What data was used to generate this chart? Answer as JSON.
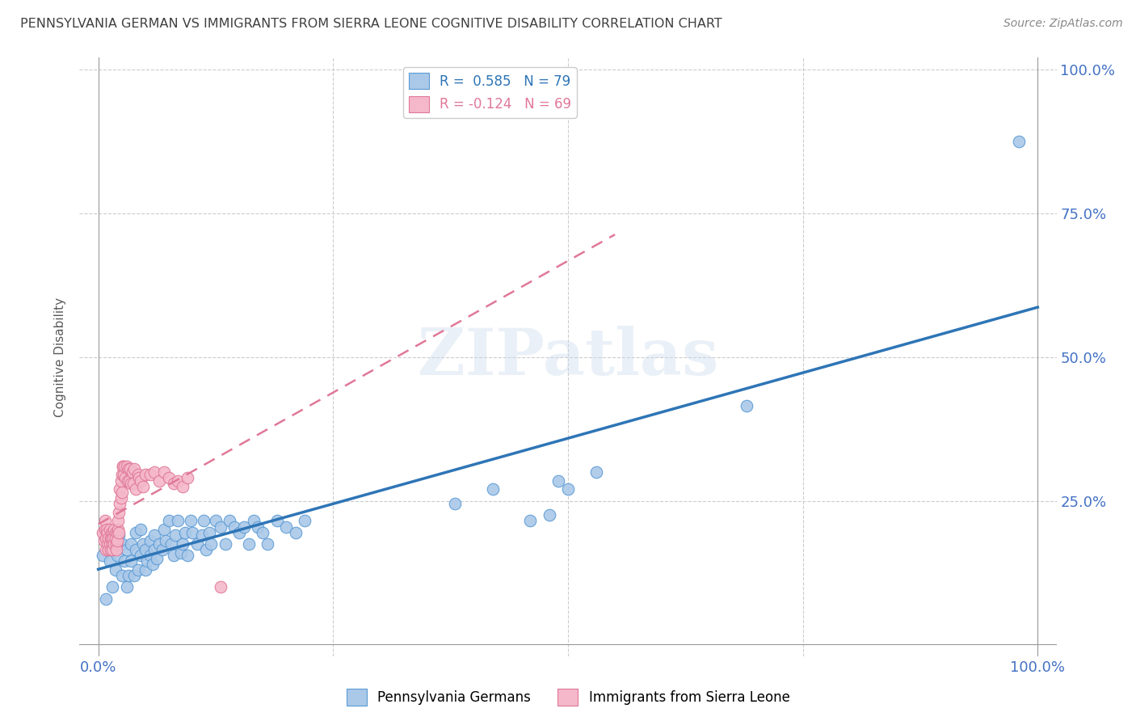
{
  "title": "PENNSYLVANIA GERMAN VS IMMIGRANTS FROM SIERRA LEONE COGNITIVE DISABILITY CORRELATION CHART",
  "source": "Source: ZipAtlas.com",
  "ylabel": "Cognitive Disability",
  "blue_R": 0.585,
  "blue_N": 79,
  "pink_R": -0.124,
  "pink_N": 69,
  "blue_color": "#aac8e8",
  "blue_edge_color": "#5b9bd5",
  "blue_line_color": "#2e75b6",
  "pink_color": "#f4b8ca",
  "pink_edge_color": "#e07898",
  "pink_line_color": "#e07898",
  "background_color": "#ffffff",
  "grid_color": "#cccccc",
  "title_color": "#404040",
  "axis_label_color": "#5a5a5a",
  "tick_color": "#4472c4",
  "watermark": "ZIPatlas",
  "blue_scatter_x": [
    0.005,
    0.008,
    0.01,
    0.012,
    0.015,
    0.015,
    0.018,
    0.02,
    0.022,
    0.025,
    0.025,
    0.028,
    0.03,
    0.03,
    0.032,
    0.035,
    0.035,
    0.038,
    0.04,
    0.04,
    0.042,
    0.045,
    0.045,
    0.048,
    0.05,
    0.05,
    0.052,
    0.055,
    0.055,
    0.058,
    0.06,
    0.06,
    0.062,
    0.065,
    0.068,
    0.07,
    0.072,
    0.075,
    0.078,
    0.08,
    0.082,
    0.085,
    0.088,
    0.09,
    0.092,
    0.095,
    0.098,
    0.1,
    0.105,
    0.11,
    0.112,
    0.115,
    0.118,
    0.12,
    0.125,
    0.13,
    0.135,
    0.14,
    0.145,
    0.15,
    0.155,
    0.16,
    0.165,
    0.17,
    0.175,
    0.18,
    0.19,
    0.2,
    0.21,
    0.22,
    0.38,
    0.42,
    0.46,
    0.48,
    0.49,
    0.5,
    0.53,
    0.69,
    0.98
  ],
  "blue_scatter_y": [
    0.155,
    0.08,
    0.18,
    0.145,
    0.1,
    0.165,
    0.13,
    0.155,
    0.19,
    0.12,
    0.175,
    0.145,
    0.1,
    0.165,
    0.12,
    0.175,
    0.145,
    0.12,
    0.195,
    0.165,
    0.13,
    0.2,
    0.155,
    0.175,
    0.13,
    0.165,
    0.145,
    0.18,
    0.155,
    0.14,
    0.19,
    0.165,
    0.15,
    0.175,
    0.165,
    0.2,
    0.18,
    0.215,
    0.175,
    0.155,
    0.19,
    0.215,
    0.16,
    0.175,
    0.195,
    0.155,
    0.215,
    0.195,
    0.175,
    0.19,
    0.215,
    0.165,
    0.195,
    0.175,
    0.215,
    0.205,
    0.175,
    0.215,
    0.205,
    0.195,
    0.205,
    0.175,
    0.215,
    0.205,
    0.195,
    0.175,
    0.215,
    0.205,
    0.195,
    0.215,
    0.245,
    0.27,
    0.215,
    0.225,
    0.285,
    0.27,
    0.3,
    0.415,
    0.875
  ],
  "pink_scatter_x": [
    0.005,
    0.006,
    0.007,
    0.007,
    0.008,
    0.008,
    0.009,
    0.01,
    0.01,
    0.011,
    0.011,
    0.012,
    0.012,
    0.013,
    0.013,
    0.014,
    0.014,
    0.015,
    0.015,
    0.016,
    0.016,
    0.017,
    0.017,
    0.018,
    0.018,
    0.019,
    0.019,
    0.02,
    0.02,
    0.021,
    0.021,
    0.022,
    0.022,
    0.023,
    0.023,
    0.024,
    0.024,
    0.025,
    0.025,
    0.026,
    0.026,
    0.027,
    0.028,
    0.029,
    0.03,
    0.031,
    0.032,
    0.033,
    0.034,
    0.035,
    0.036,
    0.037,
    0.038,
    0.04,
    0.042,
    0.043,
    0.045,
    0.048,
    0.05,
    0.055,
    0.06,
    0.065,
    0.07,
    0.075,
    0.08,
    0.085,
    0.09,
    0.095,
    0.13
  ],
  "pink_scatter_y": [
    0.195,
    0.18,
    0.2,
    0.215,
    0.185,
    0.165,
    0.2,
    0.175,
    0.195,
    0.165,
    0.185,
    0.175,
    0.2,
    0.185,
    0.165,
    0.195,
    0.185,
    0.175,
    0.165,
    0.195,
    0.185,
    0.2,
    0.175,
    0.195,
    0.185,
    0.175,
    0.165,
    0.195,
    0.18,
    0.2,
    0.215,
    0.195,
    0.23,
    0.27,
    0.245,
    0.255,
    0.285,
    0.265,
    0.295,
    0.31,
    0.31,
    0.295,
    0.31,
    0.29,
    0.31,
    0.285,
    0.305,
    0.285,
    0.305,
    0.28,
    0.3,
    0.28,
    0.305,
    0.27,
    0.295,
    0.29,
    0.285,
    0.275,
    0.295,
    0.295,
    0.3,
    0.285,
    0.3,
    0.29,
    0.28,
    0.285,
    0.275,
    0.29,
    0.1
  ]
}
